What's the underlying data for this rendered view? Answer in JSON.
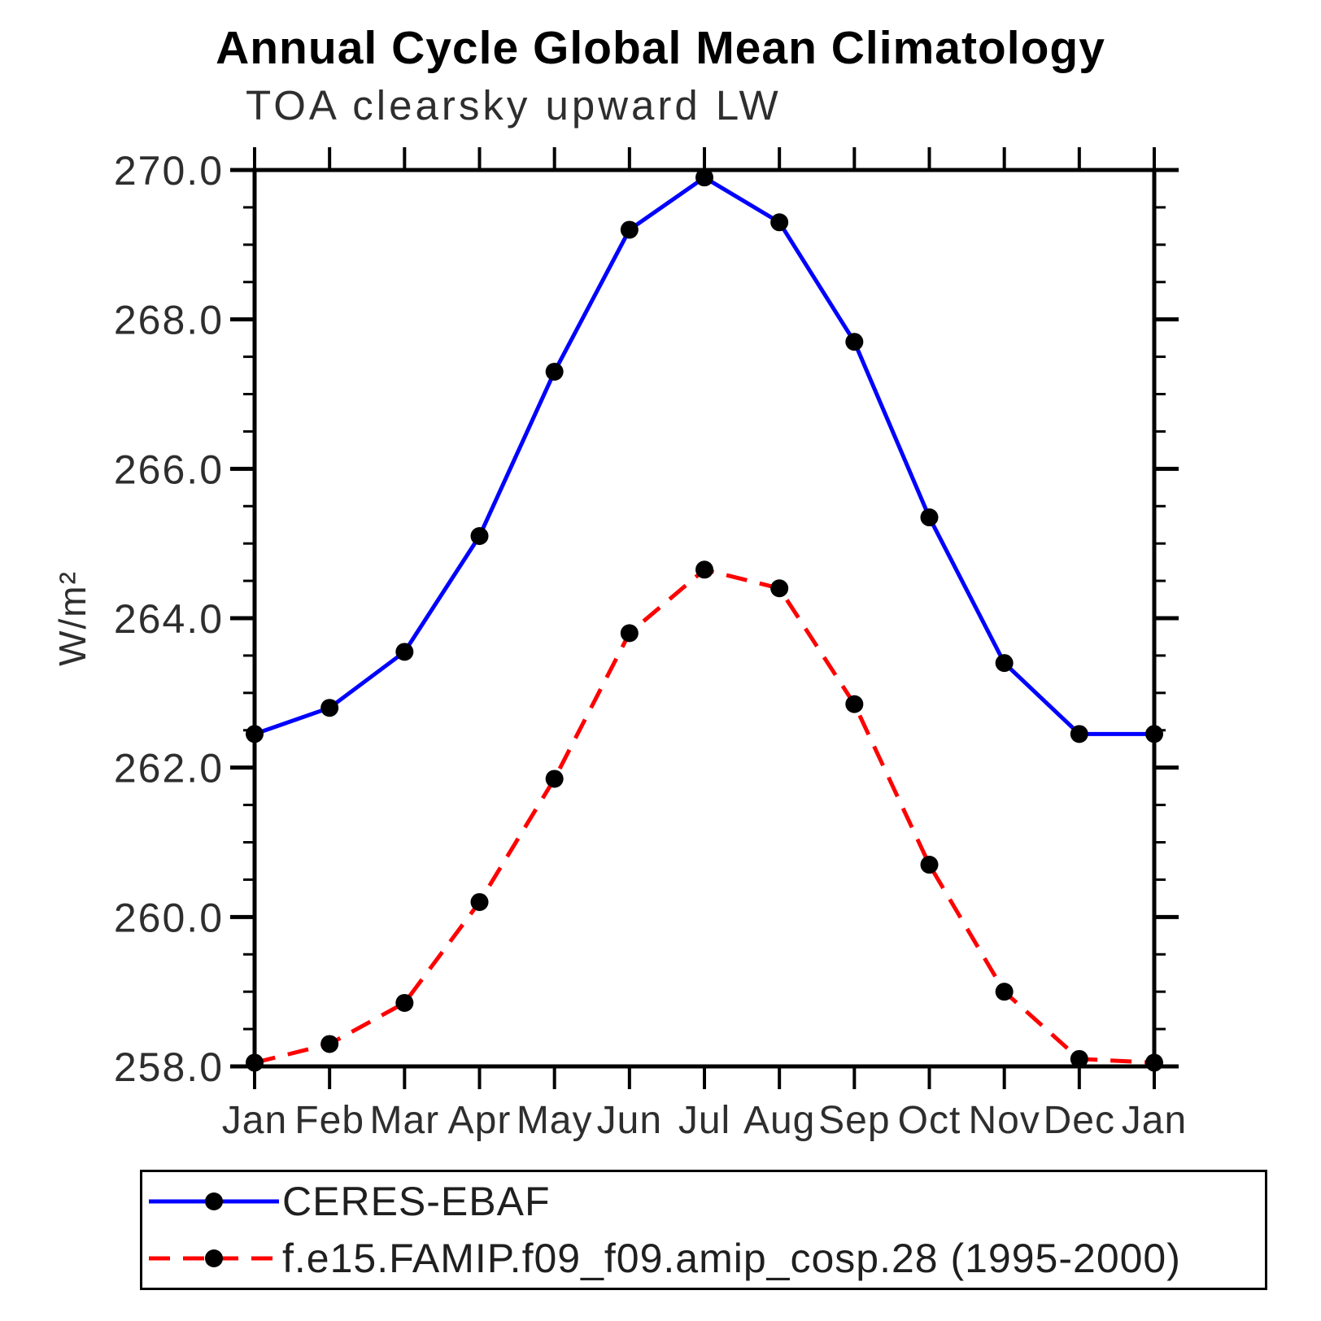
{
  "page": {
    "background": "#ffffff"
  },
  "header": {
    "title": "Annual Cycle Global Mean Climatology",
    "subtitle": "TOA clearsky upward LW"
  },
  "y_axis": {
    "label": "W/m²"
  },
  "legend": {
    "position": "bottom",
    "entries": [
      {
        "label": "CERES-EBAF",
        "color": "#0000ff",
        "line_style": "solid",
        "marker": "filled-circle"
      },
      {
        "label": "f.e15.FAMIP.f09_f09.amip_cosp.28 (1995-2000)",
        "color": "#ff0000",
        "line_style": "dashed",
        "marker": "filled-circle"
      }
    ]
  },
  "chart_data": {
    "type": "line",
    "title": "Annual Cycle Global Mean Climatology",
    "subtitle": "TOA clearsky upward LW",
    "xlabel": "",
    "ylabel": "W/m²",
    "categories": [
      "Jan",
      "Feb",
      "Mar",
      "Apr",
      "May",
      "Jun",
      "Jul",
      "Aug",
      "Sep",
      "Oct",
      "Nov",
      "Dec",
      "Jan"
    ],
    "ylim": [
      258.0,
      270.0
    ],
    "ytick_labels": [
      "258.0",
      "260.0",
      "262.0",
      "264.0",
      "266.0",
      "268.0",
      "270.0"
    ],
    "ytick_values": [
      258.0,
      260.0,
      262.0,
      264.0,
      266.0,
      268.0,
      270.0
    ],
    "ytick_minor_step": 0.5,
    "grid": false,
    "legend_position": "bottom",
    "marker_color": "#000000",
    "series": [
      {
        "name": "CERES-EBAF",
        "color": "#0000ff",
        "line_style": "solid",
        "marker": "filled-circle",
        "values": [
          262.45,
          262.8,
          263.55,
          265.1,
          267.3,
          269.2,
          269.9,
          269.3,
          267.7,
          265.35,
          263.4,
          262.45,
          262.45
        ]
      },
      {
        "name": "f.e15.FAMIP.f09_f09.amip_cosp.28 (1995-2000)",
        "color": "#ff0000",
        "line_style": "dashed",
        "marker": "filled-circle",
        "values": [
          258.05,
          258.3,
          258.85,
          260.2,
          261.85,
          263.8,
          264.65,
          264.4,
          262.85,
          260.7,
          259.0,
          258.1,
          258.05
        ]
      }
    ]
  }
}
